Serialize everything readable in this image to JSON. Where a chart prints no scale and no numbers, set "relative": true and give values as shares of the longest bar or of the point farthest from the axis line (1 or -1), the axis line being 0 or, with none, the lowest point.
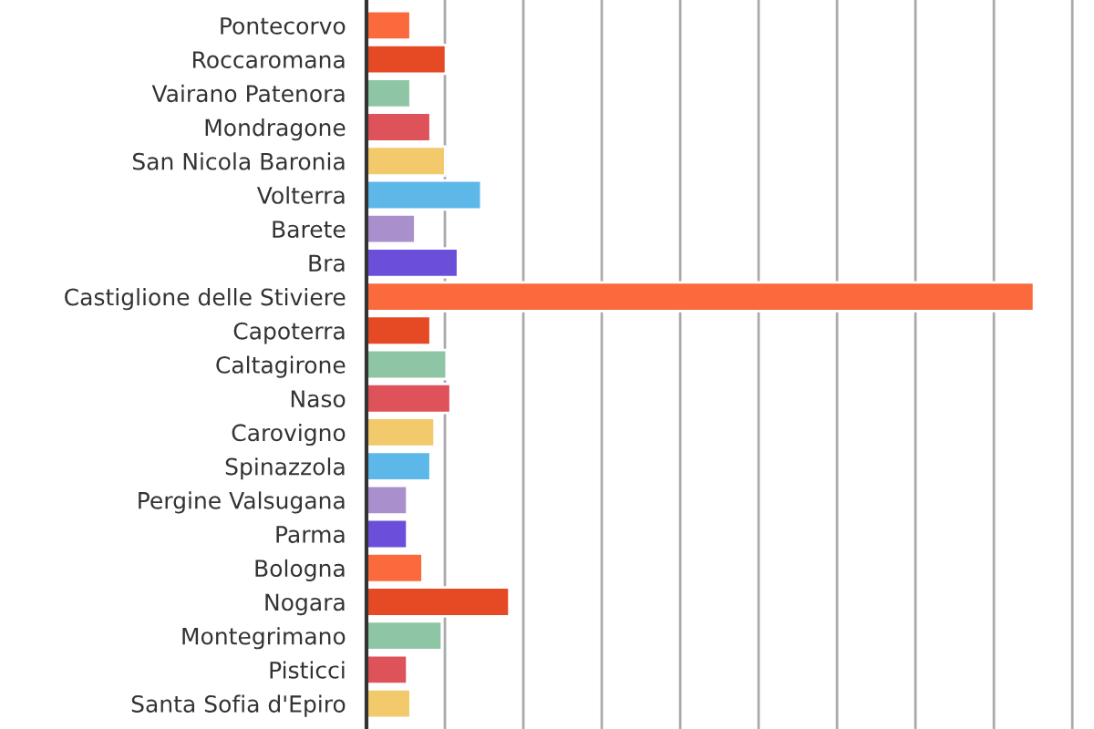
{
  "chart_data": {
    "type": "bar",
    "orientation": "horizontal",
    "relative": true,
    "grid": "x",
    "categories": [
      "Pontecorvo",
      "Roccaromana",
      "Vairano Patenora",
      "Mondragone",
      "San Nicola Baronia",
      "Volterra",
      "Barete",
      "Bra",
      "Castiglione delle Stiviere",
      "Capoterra",
      "Caltagirone",
      "Naso",
      "Carovigno",
      "Spinazzola",
      "Pergine Valsugana",
      "Parma",
      "Bologna",
      "Nogara",
      "Montegrimano",
      "Pisticci",
      "Santa Sofia d'Epiro"
    ],
    "values": [
      0.066,
      0.119,
      0.066,
      0.096,
      0.118,
      0.172,
      0.073,
      0.137,
      1,
      0.096,
      0.12,
      0.126,
      0.102,
      0.096,
      0.061,
      0.061,
      0.084,
      0.214,
      0.113,
      0.061,
      0.066
    ],
    "colors": [
      "#fb6a3c",
      "#e64a25",
      "#8ec6a5",
      "#de525a",
      "#f2c96b",
      "#5db7e8",
      "#a98fcb",
      "#6b4fdb",
      "#fb6a3c",
      "#e64a25",
      "#8ec6a5",
      "#de525a",
      "#f2c96b",
      "#5db7e8",
      "#a98fcb",
      "#6b4fdb",
      "#fb6a3c",
      "#e64a25",
      "#8ec6a5",
      "#de525a",
      "#f2c96b"
    ]
  }
}
